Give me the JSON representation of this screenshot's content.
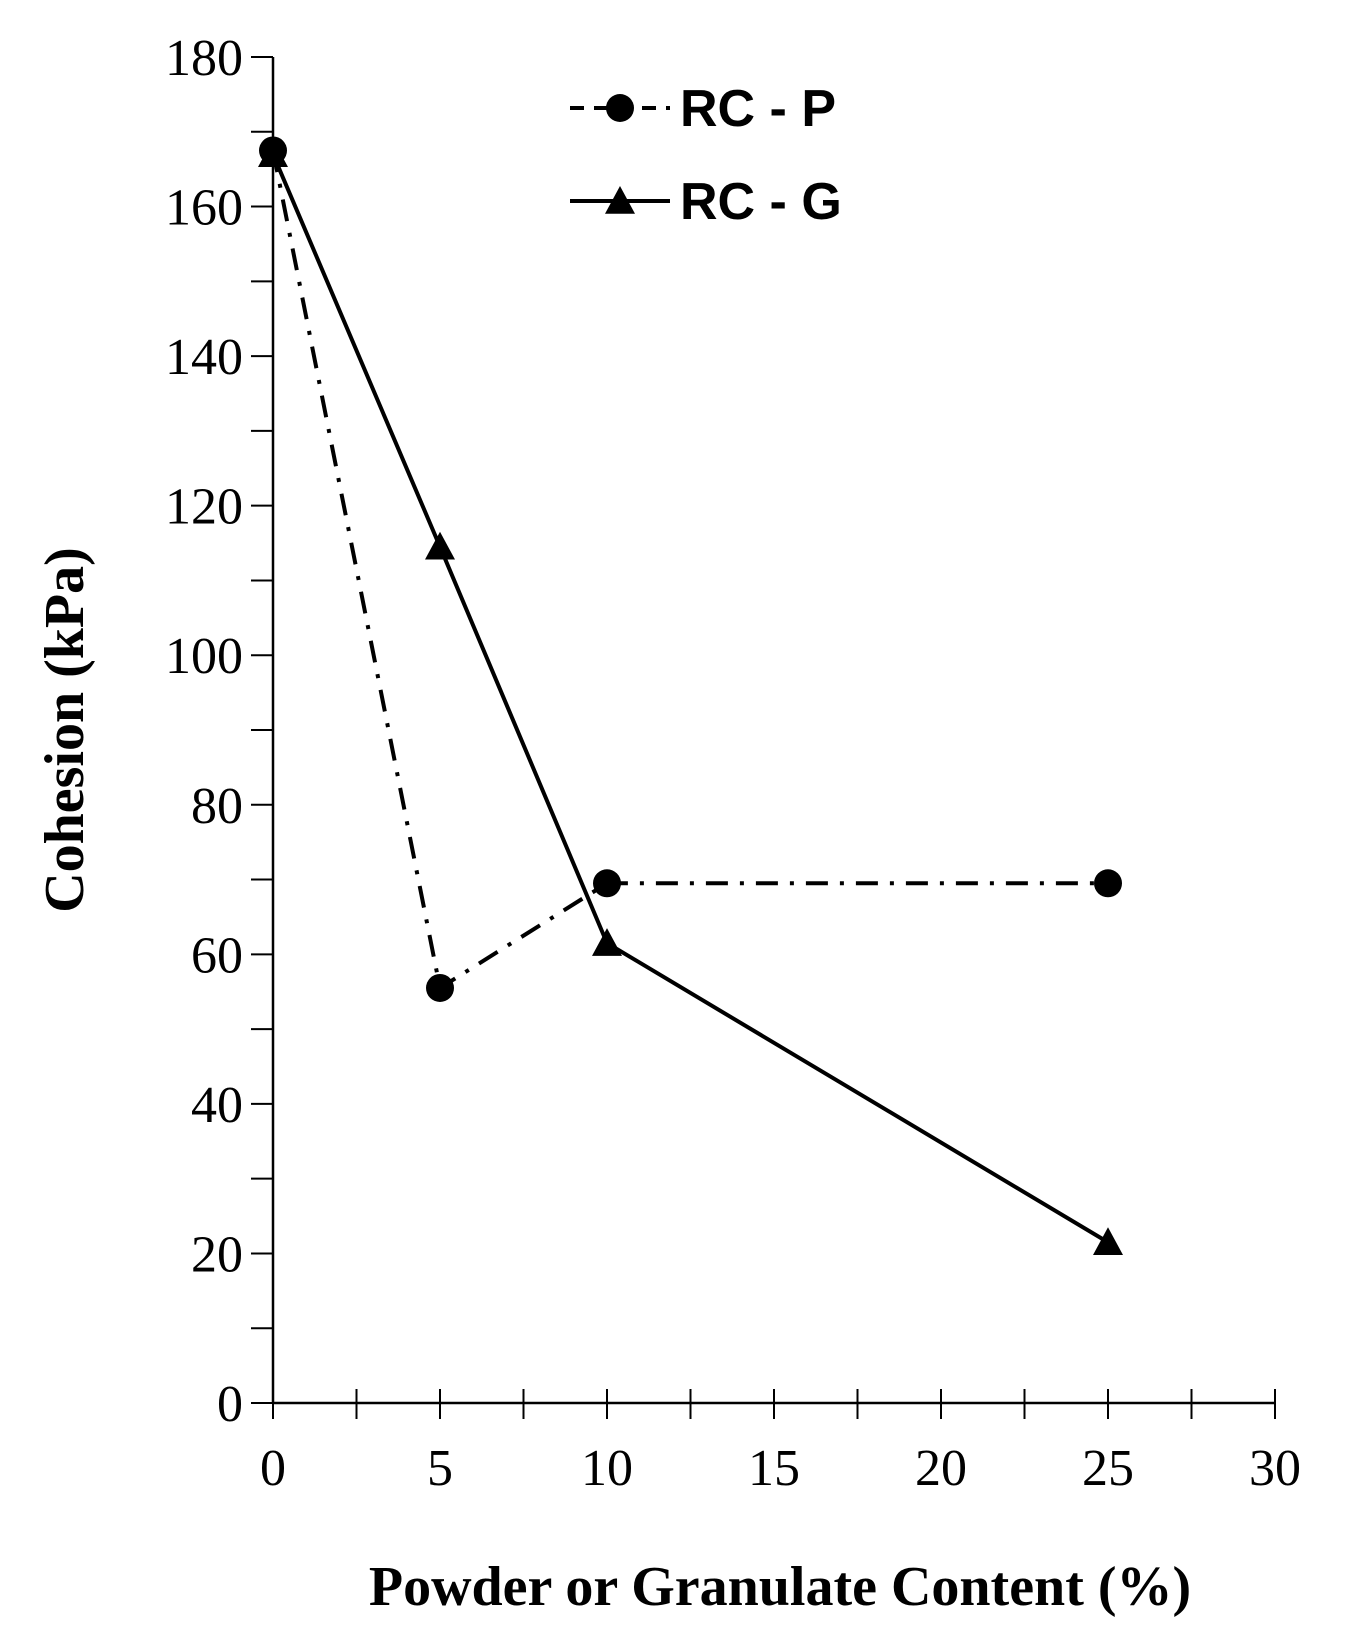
{
  "chart_data": {
    "type": "line",
    "title": "",
    "xlabel": "Powder or Granulate  Content  (%)",
    "ylabel": "Cohesion  (kPa)",
    "xlim": [
      0,
      30
    ],
    "ylim": [
      0,
      180
    ],
    "xticks": [
      0,
      5,
      10,
      15,
      20,
      25,
      30
    ],
    "yticks": [
      0,
      20,
      40,
      60,
      80,
      100,
      120,
      140,
      160,
      180
    ],
    "xticks_minor_step": 2.5,
    "yticks_minor_step": 10,
    "grid": false,
    "legend_position": "top-center",
    "series": [
      {
        "name": "RC - P",
        "line_style": "dash-dot",
        "marker": "circle",
        "color": "#000000",
        "x": [
          0,
          5,
          10,
          25
        ],
        "y": [
          167.5,
          55.5,
          69.5,
          69.5
        ]
      },
      {
        "name": "RC - G",
        "line_style": "solid",
        "marker": "triangle",
        "color": "#000000",
        "x": [
          0,
          5,
          10,
          25
        ],
        "y": [
          167,
          114.5,
          61.5,
          21.5
        ]
      }
    ]
  }
}
